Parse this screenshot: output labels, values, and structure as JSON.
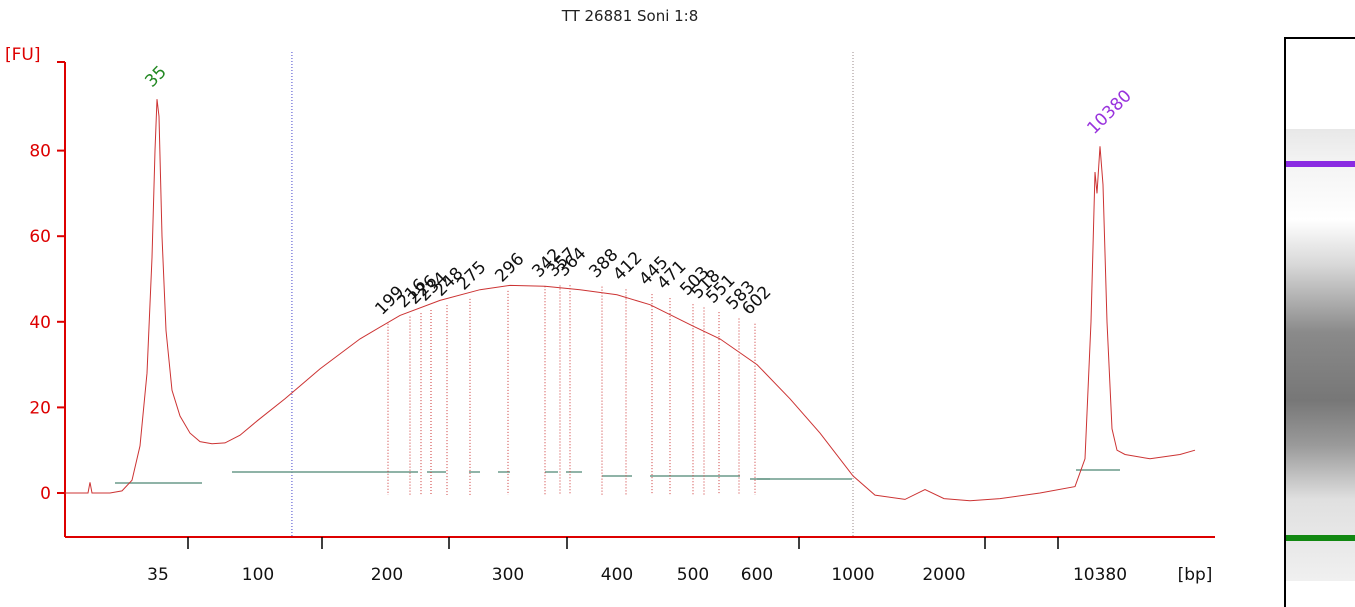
{
  "chart_data": {
    "type": "line",
    "title": "TT 26881 Soni 1:8",
    "ylabel": "[FU]",
    "xlabel": "[bp]",
    "ylim": [
      -10,
      100
    ],
    "yticks": [
      0,
      20,
      40,
      60,
      80
    ],
    "xticks": [
      "35",
      "100",
      "200",
      "300",
      "400",
      "500",
      "600",
      "1000",
      "2000",
      "10380"
    ],
    "x_scale": "log (ladder-calibrated)",
    "colors": {
      "axis": "#dd0000",
      "trace": "#cc3333",
      "baseline": "#6a9a8a",
      "lower_marker": "#228822",
      "upper_marker": "#9933dd",
      "range_line": "#4444cc"
    },
    "marker_labels": {
      "lower": "35",
      "upper": "10380"
    },
    "peak_labels": [
      "199",
      "216",
      "226",
      "234",
      "248",
      "275",
      "296",
      "342",
      "357",
      "364",
      "388",
      "412",
      "445",
      "471",
      "503",
      "518",
      "551",
      "583",
      "602"
    ],
    "series": [
      {
        "x": [
          "35",
          "100",
          "200",
          "300",
          "400",
          "500",
          "600",
          "1000",
          "2000",
          "10380"
        ],
        "values": [
          92,
          12,
          44,
          48,
          47,
          41,
          34,
          3,
          1,
          81
        ]
      }
    ],
    "region_lines": [
      "120",
      "1000"
    ]
  },
  "gel": {
    "lower_band_color": "#118811",
    "upper_band_color": "#8a2be2"
  }
}
